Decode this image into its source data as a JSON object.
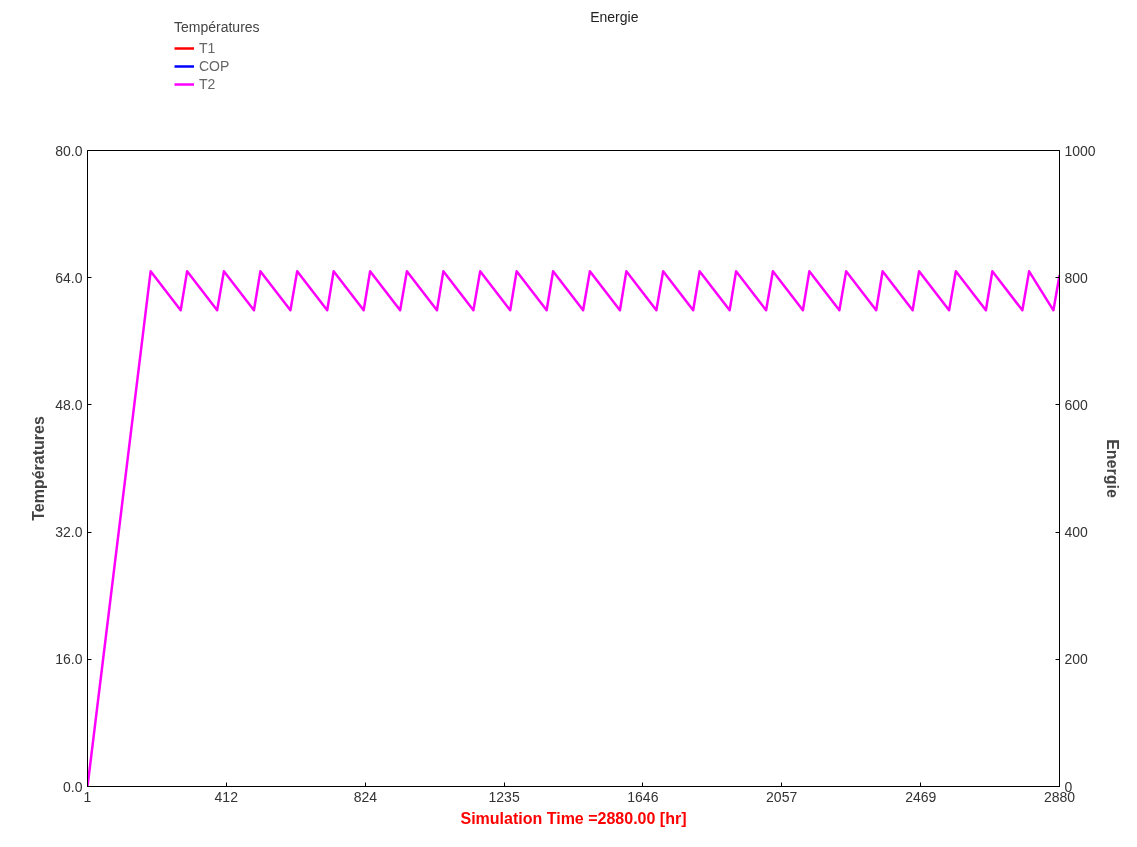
{
  "chart_data": {
    "type": "line",
    "legend_title": "Températures",
    "xlabel": "Simulation Time =2880.00 [hr]",
    "ylabel": "Températures",
    "y2label": "Energie",
    "annotations": [
      "Energie"
    ],
    "xlim": [
      1,
      2880
    ],
    "xticks": [
      1,
      412,
      824,
      1235,
      1646,
      2057,
      2469,
      2880
    ],
    "ylim": [
      0,
      80
    ],
    "yticks": [
      {
        "value": 0,
        "label": "0.0"
      },
      {
        "value": 16,
        "label": "16.0"
      },
      {
        "value": 32,
        "label": "32.0"
      },
      {
        "value": 48,
        "label": "48.0"
      },
      {
        "value": 64,
        "label": "64.0"
      },
      {
        "value": 80,
        "label": "80.0"
      }
    ],
    "y2lim": [
      0,
      1000
    ],
    "y2ticks": [
      0,
      200,
      400,
      600,
      800,
      1000
    ],
    "grid": false,
    "legend": "top left",
    "marker": "none",
    "line_style": "solid",
    "series": [
      {
        "name": "T1",
        "color": "#ff0000",
        "values": [
          null,
          null
        ]
      },
      {
        "name": "COP",
        "color": "#0000ff",
        "values": [
          null,
          null
        ]
      },
      {
        "name": "T2",
        "color": "#ff00ff",
        "x": [
          1,
          188,
          277,
          296,
          385,
          405,
          494,
          513,
          602,
          622,
          711,
          730,
          819,
          838,
          927,
          947,
          1036,
          1055,
          1144,
          1164,
          1253,
          1272,
          1361,
          1380,
          1469,
          1489,
          1578,
          1597,
          1686,
          1706,
          1795,
          1814,
          1903,
          1922,
          2011,
          2031,
          2120,
          2139,
          2228,
          2248,
          2337,
          2356,
          2445,
          2464,
          2553,
          2573,
          2662,
          2681,
          2770,
          2790,
          2862,
          2880
        ],
        "values": [
          0,
          64.8,
          59.9,
          64.8,
          59.9,
          64.8,
          59.9,
          64.8,
          59.9,
          64.8,
          59.9,
          64.8,
          59.9,
          64.8,
          59.9,
          64.8,
          59.9,
          64.8,
          59.9,
          64.8,
          59.9,
          64.8,
          59.9,
          64.8,
          59.9,
          64.8,
          59.9,
          64.8,
          59.9,
          64.8,
          59.9,
          64.8,
          59.9,
          64.8,
          59.9,
          64.8,
          59.9,
          64.8,
          59.9,
          64.8,
          59.9,
          64.8,
          59.9,
          64.8,
          59.9,
          64.8,
          59.9,
          64.8,
          59.9,
          64.8,
          59.9,
          64.3
        ]
      }
    ]
  }
}
